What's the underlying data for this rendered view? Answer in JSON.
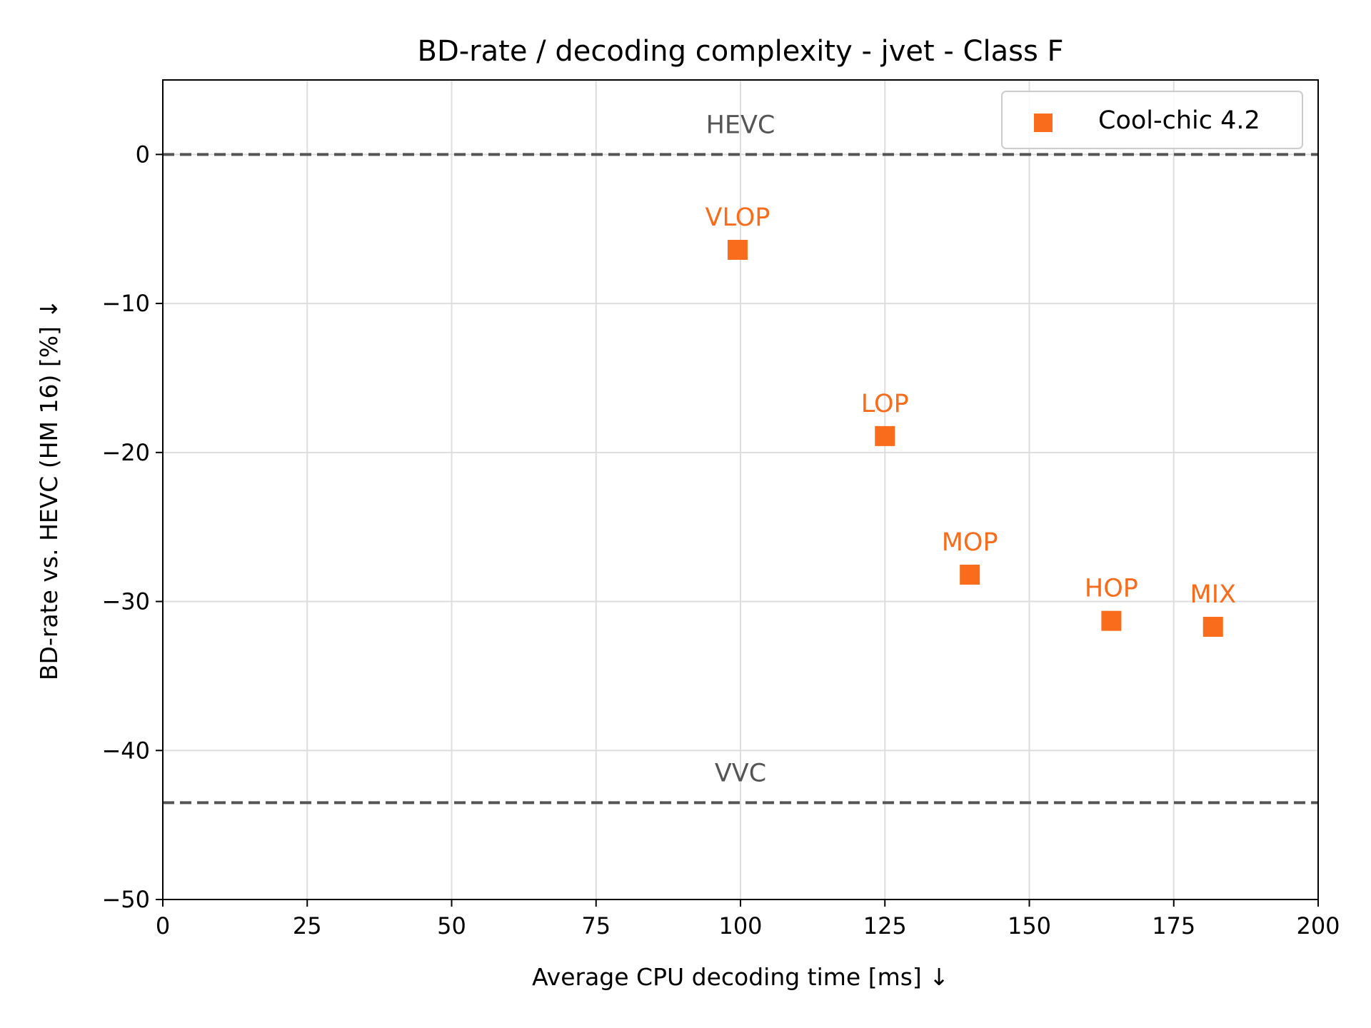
{
  "chart_data": {
    "type": "scatter",
    "title": "BD-rate / decoding complexity - jvet - Class F",
    "xlabel": "Average CPU decoding time [ms]  ↓",
    "ylabel": "BD-rate vs. HEVC (HM 16) [%]  ↓",
    "xlim": [
      0,
      200
    ],
    "ylim": [
      -50,
      5
    ],
    "xticks": [
      0,
      25,
      50,
      75,
      100,
      125,
      150,
      175,
      200
    ],
    "xtick_labels": [
      "0",
      "25",
      "50",
      "75",
      "100",
      "125",
      "150",
      "175",
      "200"
    ],
    "yticks": [
      0,
      -10,
      -20,
      -30,
      -40,
      -50
    ],
    "ytick_labels": [
      "0",
      "−10",
      "−20",
      "−30",
      "−40",
      "−50"
    ],
    "grid": true,
    "legend": {
      "position": "top-right",
      "entries": [
        "Cool-chic 4.2"
      ]
    },
    "series": [
      {
        "name": "Cool-chic 4.2",
        "color": "#f96c1b",
        "marker": "square",
        "points": [
          {
            "label": "VLOP",
            "x": 99.5,
            "y": -6.4
          },
          {
            "label": "LOP",
            "x": 125.0,
            "y": -18.9
          },
          {
            "label": "MOP",
            "x": 139.7,
            "y": -28.2
          },
          {
            "label": "HOP",
            "x": 164.2,
            "y": -31.3
          },
          {
            "label": "MIX",
            "x": 181.8,
            "y": -31.7
          }
        ]
      }
    ],
    "reference_lines": [
      {
        "label": "HEVC",
        "y": 0,
        "color": "#555555",
        "style": "dashed"
      },
      {
        "label": "VVC",
        "y": -43.5,
        "color": "#555555",
        "style": "dashed"
      }
    ]
  }
}
